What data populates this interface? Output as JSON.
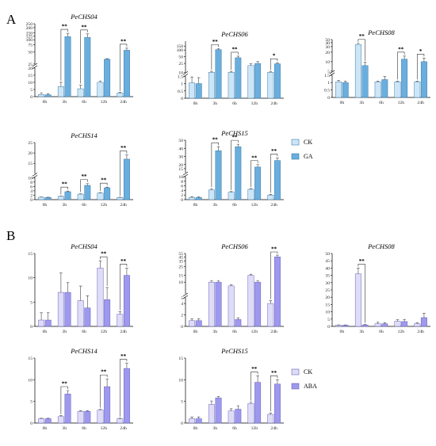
{
  "panels": [
    {
      "letter": "A",
      "colors": {
        "ck": "#cde6f7",
        "tr": "#6aaede",
        "edge": "#3d7ba8"
      },
      "legend": {
        "ck": "CK",
        "tr": "GA"
      },
      "charts": [
        {
          "type": "bar",
          "title": "PeCHS04",
          "categories": [
            "0h",
            "3h",
            "6h",
            "12h",
            "24h"
          ],
          "series": [
            {
              "name": "CK",
              "values": [
                1.5,
                7,
                5.5,
                10,
                2.5
              ]
            },
            {
              "name": "GA",
              "values": [
                1.3,
                120,
                115,
                33,
                55
              ]
            }
          ],
          "errors": [
            [
              1.2,
              3,
              2.5,
              1,
              0.5
            ],
            [
              0.8,
              25,
              25,
              1,
              7
            ]
          ],
          "sig": [
            "",
            "**",
            "**",
            "",
            "**"
          ],
          "axis": {
            "break": true,
            "lower": [
              0,
              20
            ],
            "lower_ticks": [
              0,
              5,
              10,
              15,
              20
            ],
            "upper": [
              25,
              250
            ],
            "upper_ticks": [
              25,
              50,
              75,
              100,
              125,
              150,
              200,
              250
            ],
            "upper_scale": "log"
          }
        },
        {
          "type": "bar",
          "title": "PeCHS06",
          "categories": [
            "0h",
            "3h",
            "6h",
            "12h",
            "24h"
          ],
          "series": [
            {
              "name": "CK",
              "values": [
                1.05,
                10,
                10,
                20,
                10
              ]
            },
            {
              "name": "GA",
              "values": [
                1.0,
                105,
                45,
                25,
                24
              ]
            }
          ],
          "errors": [
            [
              0.4,
              1,
              1,
              4,
              1
            ],
            [
              0.4,
              12,
              8,
              5,
              3
            ]
          ],
          "sig": [
            "",
            "**",
            "**",
            "",
            "*"
          ],
          "axis": {
            "break": true,
            "lower": [
              0,
              1.5
            ],
            "lower_ticks": [
              0,
              0.5,
              1.0,
              1.5
            ],
            "upper": [
              10,
              250
            ],
            "upper_ticks": [
              10,
              25,
              50,
              100,
              150
            ],
            "upper_scale": "log"
          }
        },
        {
          "type": "bar",
          "title": "PeCHS08",
          "categories": [
            "0h",
            "3h",
            "6h",
            "12h",
            "24h"
          ],
          "series": [
            {
              "name": "CK",
              "values": [
                1.05,
                35,
                1.05,
                1.05,
                1.05
              ]
            },
            {
              "name": "GA",
              "values": [
                1.0,
                7.5,
                1.2,
                12,
                10
              ]
            }
          ],
          "errors": [
            [
              0.1,
              3,
              0.05,
              0.05,
              0.05
            ],
            [
              0.1,
              2,
              0.2,
              3,
              3
            ]
          ],
          "sig": [
            "",
            "**",
            "",
            "**",
            "*"
          ],
          "axis": {
            "break": true,
            "lower": [
              0,
              1.5
            ],
            "lower_ticks": [
              0,
              0.5,
              1.0,
              1.5
            ],
            "upper": [
              5,
              50
            ],
            "upper_ticks": [
              5,
              10,
              20,
              30,
              40,
              50
            ],
            "upper_scale": "log"
          }
        },
        {
          "type": "bar",
          "title": "PeCHS14",
          "categories": [
            "0h",
            "3h",
            "6h",
            "12h",
            "24h"
          ],
          "series": [
            {
              "name": "CK",
              "values": [
                1.1,
                1.5,
                2.5,
                3,
                1.0
              ]
            },
            {
              "name": "GA",
              "values": [
                1.0,
                3.6,
                6.5,
                5.4,
                17
              ]
            }
          ],
          "errors": [
            [
              0.1,
              0.1,
              0.2,
              0.2,
              0.1
            ],
            [
              0.1,
              0.3,
              0.8,
              0.3,
              2
            ]
          ],
          "sig": [
            "",
            "**",
            "**",
            "**",
            "**"
          ],
          "axis": {
            "break": true,
            "lower": [
              0,
              10
            ],
            "lower_ticks": [
              0,
              2,
              4,
              6,
              8,
              10
            ],
            "upper": [
              10,
              25
            ],
            "upper_ticks": [
              15,
              20,
              25
            ],
            "upper_scale": "linear"
          }
        },
        {
          "type": "bar",
          "title": "PeCHS15",
          "categories": [
            "0h",
            "3h",
            "6h",
            "12h",
            "24h"
          ],
          "series": [
            {
              "name": "CK",
              "values": [
                1.0,
                4.2,
                3.2,
                4.5,
                2.0
              ]
            },
            {
              "name": "GA",
              "values": [
                0.9,
                37,
                42,
                17,
                25
              ]
            }
          ],
          "errors": [
            [
              0.3,
              0.5,
              0.3,
              0.3,
              0.3
            ],
            [
              0.3,
              5,
              3,
              3,
              3
            ]
          ],
          "sig": [
            "",
            "**",
            "**",
            "**",
            "**"
          ],
          "axis": {
            "break": true,
            "lower": [
              0,
              10
            ],
            "lower_ticks": [
              0,
              2,
              4,
              6,
              8,
              10
            ],
            "upper": [
              10,
              50
            ],
            "upper_ticks": [
              15,
              20,
              30,
              40,
              50
            ],
            "upper_scale": "linear"
          }
        }
      ]
    },
    {
      "letter": "B",
      "colors": {
        "ck": "#dedcf7",
        "tr": "#9e98ee",
        "edge": "#6a64b8"
      },
      "legend": {
        "ck": "CK",
        "tr": "ABA"
      },
      "charts": [
        {
          "type": "bar",
          "title": "PeCHS04",
          "categories": [
            "0h",
            "3h",
            "6h",
            "12h",
            "24h"
          ],
          "series": [
            {
              "name": "CK",
              "values": [
                1.3,
                7,
                5.3,
                12,
                2.5
              ]
            },
            {
              "name": "ABA",
              "values": [
                1.3,
                7,
                3.8,
                5.5,
                10.5
              ]
            }
          ],
          "errors": [
            [
              1.5,
              4,
              3,
              1.5,
              0.5
            ],
            [
              1.5,
              2,
              2.5,
              2.5,
              1.5
            ]
          ],
          "sig": [
            "",
            "",
            "",
            "**",
            "**"
          ],
          "axis": {
            "break": false,
            "lower": [
              0,
              15
            ],
            "lower_ticks": [
              0,
              5,
              10,
              15
            ]
          }
        },
        {
          "type": "bar",
          "title": "PeCHS06",
          "categories": [
            "0h",
            "3h",
            "6h",
            "12h",
            "24h"
          ],
          "series": [
            {
              "name": "CK",
              "values": [
                1.0,
                10,
                8,
                15,
                4
              ]
            },
            {
              "name": "ABA",
              "values": [
                1.0,
                10,
                1.2,
                10,
                45
              ]
            }
          ],
          "errors": [
            [
              0.3,
              1,
              0.5,
              1,
              0.5
            ],
            [
              0.3,
              1,
              0.3,
              1,
              5
            ]
          ],
          "sig": [
            "",
            "",
            "",
            "",
            "**"
          ],
          "axis": {
            "break": true,
            "lower": [
              0,
              5
            ],
            "lower_ticks": [
              0,
              2,
              4
            ],
            "upper": [
              5,
              55
            ],
            "upper_ticks": [
              5,
              10,
              15,
              25,
              35,
              45,
              55
            ],
            "upper_scale": "log"
          }
        },
        {
          "type": "bar",
          "title": "PeCHS08",
          "categories": [
            "0h",
            "3h",
            "6h",
            "12h",
            "24h"
          ],
          "series": [
            {
              "name": "CK",
              "values": [
                0.8,
                36,
                1.8,
                3.5,
                1.8
              ]
            },
            {
              "name": "ABA",
              "values": [
                0.8,
                1.0,
                1.8,
                3.3,
                6
              ]
            }
          ],
          "errors": [
            [
              0.2,
              4,
              1,
              1,
              0.8
            ],
            [
              0.2,
              0.3,
              0.8,
              1.5,
              3
            ]
          ],
          "sig": [
            "",
            "**",
            "",
            "",
            ""
          ],
          "axis": {
            "break": false,
            "lower": [
              0,
              50
            ],
            "lower_ticks": [
              0,
              5,
              10,
              15,
              20,
              25,
              30,
              35,
              40,
              45,
              50
            ]
          }
        },
        {
          "type": "bar",
          "title": "PeCHS14",
          "categories": [
            "0h",
            "3h",
            "6h",
            "12h",
            "24h"
          ],
          "series": [
            {
              "name": "CK",
              "values": [
                1.0,
                1.5,
                2.7,
                3.0,
                1.0
              ]
            },
            {
              "name": "ABA",
              "values": [
                1.0,
                6.7,
                2.7,
                8.4,
                12.6
              ]
            }
          ],
          "errors": [
            [
              0.1,
              0.2,
              0.2,
              0.2,
              0.1
            ],
            [
              0.1,
              0.8,
              0.2,
              1.8,
              1.2
            ]
          ],
          "sig": [
            "",
            "**",
            "",
            "**",
            "**"
          ],
          "axis": {
            "break": false,
            "lower": [
              0,
              15
            ],
            "lower_ticks": [
              0,
              5,
              10,
              15
            ]
          }
        },
        {
          "type": "bar",
          "title": "PeCHS15",
          "categories": [
            "0h",
            "3h",
            "6h",
            "12h",
            "24h"
          ],
          "series": [
            {
              "name": "CK",
              "values": [
                1.0,
                4.3,
                2.8,
                4.5,
                2.0
              ]
            },
            {
              "name": "ABA",
              "values": [
                1.0,
                5.8,
                3.2,
                9.4,
                9.0
              ]
            }
          ],
          "errors": [
            [
              0.4,
              0.8,
              0.5,
              0.3,
              0.3
            ],
            [
              0.4,
              0.3,
              0.8,
              1.5,
              1.0
            ]
          ],
          "sig": [
            "",
            "",
            "",
            "**",
            "**"
          ],
          "axis": {
            "break": false,
            "lower": [
              0,
              15
            ],
            "lower_ticks": [
              0,
              5,
              10,
              15
            ]
          }
        }
      ]
    }
  ]
}
